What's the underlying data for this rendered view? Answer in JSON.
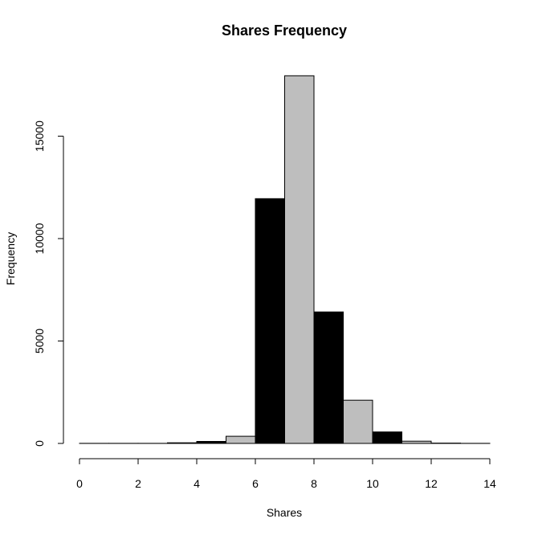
{
  "chart_data": {
    "type": "bar",
    "title": "Shares Frequency",
    "xlabel": "Shares",
    "ylabel": "Frequency",
    "bin_edges": [
      0,
      1,
      2,
      3,
      4,
      5,
      6,
      7,
      8,
      9,
      10,
      11,
      12,
      13,
      14
    ],
    "values": [
      2,
      3,
      5,
      30,
      100,
      350,
      11950,
      17950,
      6420,
      2110,
      560,
      110,
      15,
      3
    ],
    "bar_colors": [
      "#000000",
      "#bebebe"
    ],
    "xlim": [
      0,
      14
    ],
    "ylim": [
      0,
      18000
    ],
    "xticks": [
      0,
      2,
      4,
      6,
      8,
      10,
      12,
      14
    ],
    "yticks": [
      0,
      5000,
      10000,
      15000
    ],
    "grid": false
  }
}
